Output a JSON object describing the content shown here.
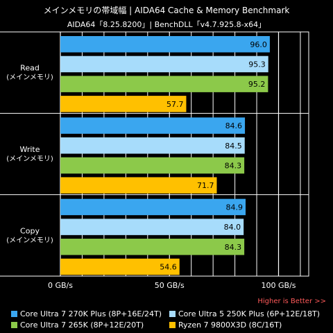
{
  "chart_data": {
    "type": "bar",
    "orientation": "horizontal",
    "title": "メインメモリの帯域幅 | AIDA64 Cache & Memory Benchmark",
    "subtitle": "AIDA64「8.25.8200」| BenchDLL「v4.7.925.8-x64」",
    "categories": [
      "Read\n(メインメモリ)",
      "Write\n(メインメモリ)",
      "Copy\n(メインメモリ)"
    ],
    "series": [
      {
        "name": "Core Ultra 7 270K Plus (8P+16E/24T)",
        "color": "#3aa6ef",
        "values": [
          96.0,
          84.6,
          84.9
        ]
      },
      {
        "name": "Core Ultra 5 250K Plus (6P+12E/18T)",
        "color": "#a7dcfb",
        "values": [
          95.3,
          84.5,
          84.0
        ]
      },
      {
        "name": "Core Ultra 7 265K (8P+12E/20T)",
        "color": "#8cc94a",
        "values": [
          95.2,
          84.3,
          84.3
        ]
      },
      {
        "name": "Ryzen 7 9800X3D (8C/16T)",
        "color": "#ffc000",
        "values": [
          57.7,
          71.7,
          54.6
        ]
      }
    ],
    "x_ticks": [
      "0 GB/s",
      "50 GB/s",
      "100 GB/s"
    ],
    "xlim": [
      0,
      110
    ],
    "note": "Higher is Better >>",
    "grid": true,
    "legend_position": "bottom"
  }
}
